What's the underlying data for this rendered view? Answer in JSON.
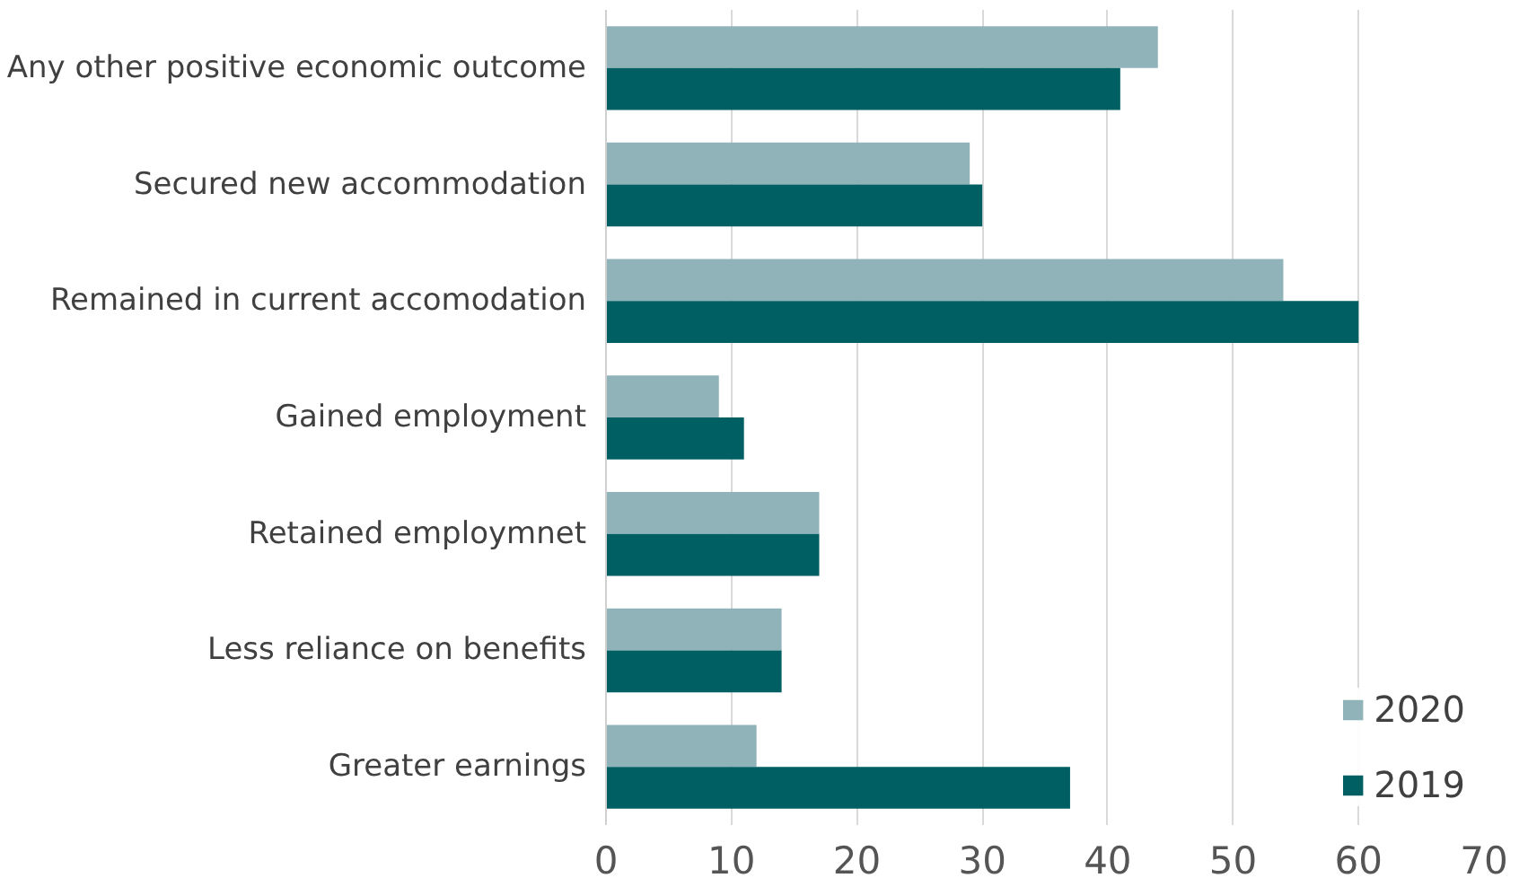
{
  "chart_data": {
    "type": "bar",
    "orientation": "horizontal",
    "categories": [
      "Any other positive economic outcome",
      "Secured new accommodation",
      "Remained in current accomodation",
      "Gained employment",
      "Retained employmnet",
      "Less reliance on benefits",
      "Greater earnings"
    ],
    "series": [
      {
        "name": "2020",
        "color": "#8fb3b9",
        "values": [
          44,
          29,
          54,
          9,
          17,
          14,
          12
        ]
      },
      {
        "name": "2019",
        "color": "#005f63",
        "values": [
          41,
          30,
          60,
          11,
          17,
          14,
          37
        ]
      }
    ],
    "xlim": [
      0,
      70
    ],
    "xticks": [
      0,
      10,
      20,
      30,
      40,
      50,
      60,
      70
    ],
    "grid": "x",
    "legend": "bottom right"
  }
}
